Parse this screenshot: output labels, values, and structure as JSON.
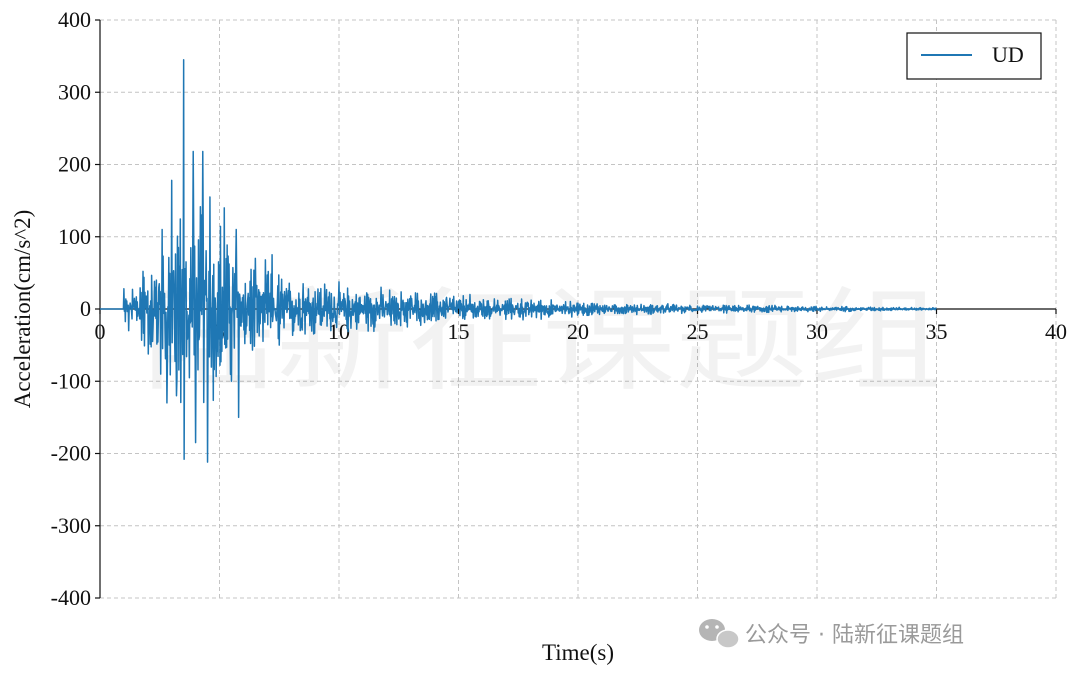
{
  "watermark_text": "陆新征课题组",
  "footer": {
    "text": "公众号 · 陆新征课题组",
    "icon": "wechat-icon"
  },
  "chart_data": {
    "type": "line",
    "title": "",
    "xlabel": "Time(s)",
    "ylabel": "Acceleration(cm/s^2)",
    "xlim": [
      0,
      40
    ],
    "ylim": [
      -400,
      400
    ],
    "xticks": [
      0,
      5,
      10,
      15,
      20,
      25,
      30,
      35,
      40
    ],
    "yticks": [
      400,
      300,
      200,
      100,
      0,
      -100,
      -200,
      -300,
      -400
    ],
    "grid": true,
    "grid_style": "dashed",
    "legend_position": "top-right",
    "series": [
      {
        "name": "UD",
        "color": "#1f77b4",
        "sample_interval_s": 0.02,
        "note_shape": "earthquake accelerogram, onset ~1 s, strong motion 2-6 s, decay to ~35 s",
        "peaks": [
          {
            "x": 1.0,
            "y": 28
          },
          {
            "x": 1.2,
            "y": -30
          },
          {
            "x": 1.8,
            "y": 52
          },
          {
            "x": 2.2,
            "y": -45
          },
          {
            "x": 2.6,
            "y": 110
          },
          {
            "x": 2.8,
            "y": -130
          },
          {
            "x": 3.0,
            "y": 178
          },
          {
            "x": 3.2,
            "y": -120
          },
          {
            "x": 3.5,
            "y": 345
          },
          {
            "x": 3.5,
            "y": -208
          },
          {
            "x": 3.9,
            "y": 218
          },
          {
            "x": 4.0,
            "y": -185
          },
          {
            "x": 4.3,
            "y": 218
          },
          {
            "x": 4.5,
            "y": -212
          },
          {
            "x": 4.6,
            "y": 155
          },
          {
            "x": 5.2,
            "y": 140
          },
          {
            "x": 5.5,
            "y": -100
          },
          {
            "x": 5.7,
            "y": 110
          },
          {
            "x": 5.8,
            "y": -150
          },
          {
            "x": 6.5,
            "y": 70
          },
          {
            "x": 7.2,
            "y": 75
          },
          {
            "x": 7.5,
            "y": -50
          },
          {
            "x": 8.5,
            "y": 35
          },
          {
            "x": 10.0,
            "y": 25
          },
          {
            "x": 11.5,
            "y": -20
          },
          {
            "x": 13.0,
            "y": 18
          },
          {
            "x": 14.5,
            "y": 16
          },
          {
            "x": 16.5,
            "y": 14
          },
          {
            "x": 20.0,
            "y": 8
          },
          {
            "x": 25.0,
            "y": 4
          },
          {
            "x": 35.0,
            "y": 0
          }
        ]
      }
    ]
  }
}
